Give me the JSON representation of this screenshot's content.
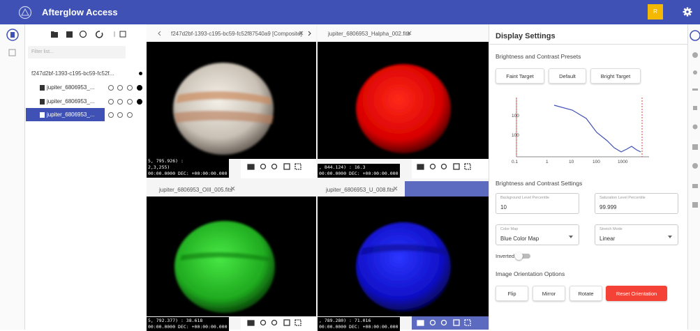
{
  "header": {
    "title": "Afterglow Access",
    "avatar": "R"
  },
  "file_panel": {
    "filter_placeholder": "Filter list...",
    "root": "f247d2bf-1393-c195-bc59-fc52f...",
    "files": [
      "jupiter_6806953_...",
      "jupiter_6806953_...",
      "jupiter_6806953_..."
    ]
  },
  "viewers": [
    {
      "tab": "f247d2bf-1393-c195-bc59-fc52f87540a9 [Composite]",
      "overlay": [
        "5, 795.926) :",
        "2,3,255)",
        "00:00.0000 DEC: +00:00:00.000"
      ]
    },
    {
      "tab": "jupiter_6806953_Halpha_002.fits",
      "overlay": [
        ", 844.124) : 16.3",
        "00:00.0000 DEC: +00:00:00.000"
      ]
    },
    {
      "tab": "jupiter_6806953_OIII_005.fits",
      "overlay": [
        "5, 792.377) : 38.618",
        "00:00.0000 DEC: +00:00:00.000"
      ]
    },
    {
      "tab": "jupiter_6806953_U_008.fits",
      "overlay": [
        ", 789.280) : 71.016",
        "00:00.0000 DEC: +00:00:00.000"
      ]
    }
  ],
  "display_settings": {
    "title": "Display Settings",
    "presets": {
      "heading": "Brightness and Contrast Presets",
      "buttons": [
        "Faint Target",
        "Default",
        "Bright Target"
      ]
    },
    "histogram": {
      "y_tick_labels": [
        "100",
        "100"
      ],
      "x_tick_labels": [
        "0.1",
        "1",
        "10",
        "100",
        "1000"
      ]
    },
    "settings": {
      "heading": "Brightness and Contrast Settings",
      "fields": [
        {
          "label": "Background Level Percentile",
          "value": "10"
        },
        {
          "label": "Saturation Level Percentile",
          "value": "99.999"
        },
        {
          "label": "Color Map",
          "value": "Blue Color Map"
        },
        {
          "label": "Stretch Mode",
          "value": "Linear"
        }
      ],
      "inverted": "Inverted"
    },
    "orientation": {
      "heading": "Image Orientation Options",
      "buttons": [
        "Flip",
        "Mirror",
        "Rotate",
        "Reset Orientation"
      ]
    }
  }
}
